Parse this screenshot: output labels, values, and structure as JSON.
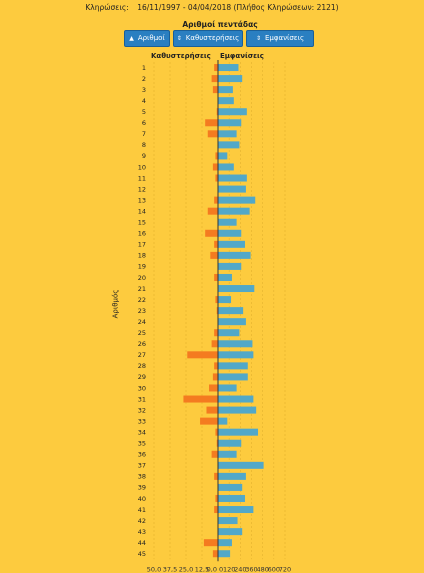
{
  "header": {
    "label": "Κληρώσεις:",
    "date_range": "16/11/1997 - 04/04/2018",
    "draw_count": "(Πλήθος Κληρώσεων: 2121)"
  },
  "subtitle": "Αριθμοί πεντάδας",
  "buttons": [
    {
      "label": "Αριθμοί",
      "icon": "arrow-up"
    },
    {
      "label": "Καθυστερήσεις",
      "icon": "arrow-updown"
    },
    {
      "label": "Εμφανίσεις",
      "icon": "arrow-updown"
    }
  ],
  "chart_data": {
    "type": "bar",
    "orientation": "horizontal-butterfly",
    "left_label": "Καθυστερήσεις",
    "right_label": "Εμφανίσεις",
    "ylabel": "Αριθμός",
    "categories": [
      "1",
      "2",
      "3",
      "4",
      "5",
      "6",
      "7",
      "8",
      "9",
      "10",
      "11",
      "12",
      "13",
      "14",
      "15",
      "16",
      "17",
      "18",
      "19",
      "20",
      "21",
      "22",
      "23",
      "24",
      "25",
      "26",
      "27",
      "28",
      "29",
      "30",
      "31",
      "32",
      "33",
      "34",
      "35",
      "36",
      "37",
      "38",
      "39",
      "40",
      "41",
      "42",
      "43",
      "44",
      "45"
    ],
    "left_axis": {
      "ticks": [
        "50,0",
        "37,5",
        "25,0",
        "12,5",
        "0,0"
      ],
      "tick_values": [
        50,
        37.5,
        25,
        12.5,
        0
      ]
    },
    "right_axis": {
      "ticks": [
        "0",
        "120",
        "240",
        "360",
        "480",
        "600",
        "720"
      ],
      "tick_values": [
        0,
        120,
        240,
        360,
        480,
        600,
        720
      ]
    },
    "series": [
      {
        "name": "Καθυστερήσεις",
        "color": "#F47B20",
        "values": [
          3,
          5,
          4,
          0,
          1,
          10,
          8,
          0,
          2,
          4,
          2,
          0,
          3,
          8,
          0,
          10,
          3,
          6,
          0,
          3,
          0,
          2,
          1,
          0,
          3,
          5,
          24,
          3,
          4,
          7,
          27,
          9,
          14,
          2,
          1,
          5,
          0,
          3,
          0,
          2,
          3,
          0,
          0,
          11,
          4
        ]
      },
      {
        "name": "Εμφανίσεις",
        "color": "#52A8C8",
        "values": [
          220,
          260,
          160,
          170,
          310,
          250,
          200,
          230,
          100,
          170,
          310,
          300,
          400,
          340,
          200,
          250,
          290,
          350,
          250,
          150,
          390,
          140,
          270,
          300,
          230,
          370,
          380,
          320,
          320,
          200,
          380,
          410,
          100,
          430,
          250,
          200,
          490,
          300,
          260,
          290,
          380,
          210,
          260,
          150,
          130
        ]
      }
    ]
  }
}
